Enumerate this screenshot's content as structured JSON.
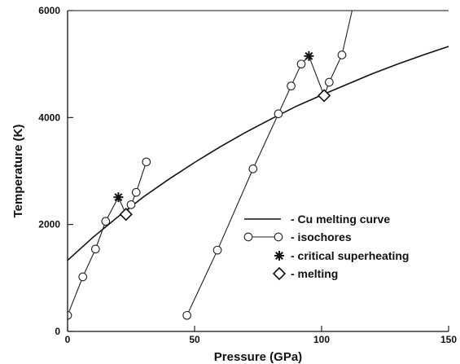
{
  "chart_data": {
    "type": "scatter",
    "xlabel": "Pressure (GPa)",
    "ylabel": "Temperature (K)",
    "xlim": [
      0,
      150
    ],
    "ylim": [
      0,
      6000
    ],
    "x_ticks": [
      0,
      50,
      100,
      150
    ],
    "y_ticks": [
      0,
      2000,
      4000,
      6000
    ],
    "grid": false,
    "legend_position": "lower-right",
    "series": [
      {
        "name": "Cu melting curve",
        "style": "line",
        "x": [
          0,
          10,
          20,
          30,
          40,
          50,
          60,
          70,
          80,
          90,
          100,
          110,
          120,
          130,
          140,
          150
        ],
        "y": [
          1330,
          1760,
          2150,
          2520,
          2850,
          3160,
          3450,
          3720,
          3970,
          4210,
          4420,
          4620,
          4820,
          5000,
          5170,
          5330
        ]
      },
      {
        "name": "isochores",
        "style": "line-open-circle",
        "groups": [
          {
            "x": [
              0,
              6,
              11,
              15,
              20,
              23,
              25,
              27,
              31
            ],
            "y": [
              300,
              1020,
              1540,
              2060,
              2510,
              2190,
              2370,
              2600,
              3170
            ]
          },
          {
            "x": [
              47,
              59,
              73,
              83,
              88,
              92,
              95,
              101,
              103,
              108,
              112
            ],
            "y": [
              300,
              1520,
              3040,
              4070,
              4590,
              5000,
              5150,
              4410,
              4660,
              5170,
              6000
            ]
          }
        ],
        "markers_x": [
          0,
          6,
          11,
          15,
          25,
          27,
          31,
          47,
          59,
          73,
          83,
          88,
          92,
          103,
          108
        ],
        "markers_y": [
          300,
          1020,
          1540,
          2060,
          2370,
          2600,
          3170,
          300,
          1520,
          3040,
          4070,
          4590,
          5000,
          4660,
          5170
        ]
      },
      {
        "name": "critical superheating",
        "style": "asterisk",
        "x": [
          20,
          95
        ],
        "y": [
          2510,
          5150
        ]
      },
      {
        "name": "melting",
        "style": "open-diamond",
        "x": [
          23,
          101
        ],
        "y": [
          2190,
          4410
        ]
      }
    ],
    "legend": [
      {
        "label": "- Cu melting curve",
        "symbol": "line"
      },
      {
        "label": "- isochores",
        "symbol": "line-open-circle"
      },
      {
        "label": "- critical superheating",
        "symbol": "asterisk"
      },
      {
        "label": "- melting",
        "symbol": "open-diamond"
      }
    ]
  }
}
